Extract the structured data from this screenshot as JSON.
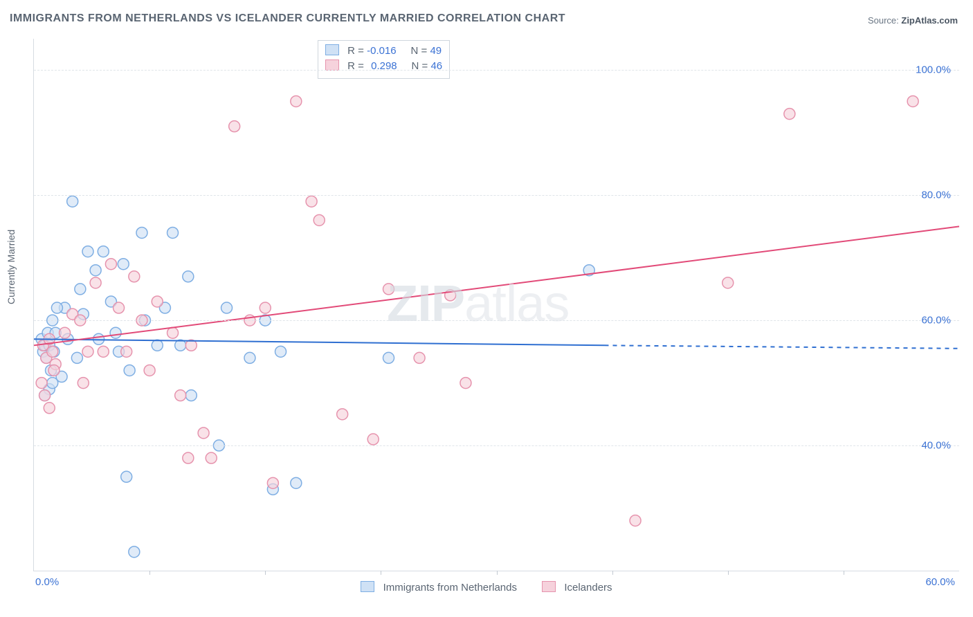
{
  "title": "IMMIGRANTS FROM NETHERLANDS VS ICELANDER CURRENTLY MARRIED CORRELATION CHART",
  "source_label": "Source: ",
  "source_value": "ZipAtlas.com",
  "watermark_left": "ZIP",
  "watermark_right": "atlas",
  "yaxis_title": "Currently Married",
  "chart": {
    "type": "scatter",
    "xlim": [
      0,
      60
    ],
    "ylim": [
      20,
      105
    ],
    "x_ticks": [
      0,
      60
    ],
    "x_tick_labels": [
      "0.0%",
      "60.0%"
    ],
    "x_minor_ticks": [
      7.5,
      15,
      22.5,
      30,
      37.5,
      45,
      52.5
    ],
    "y_gridlines": [
      40,
      60,
      80,
      100
    ],
    "y_tick_labels": [
      "40.0%",
      "60.0%",
      "80.0%",
      "100.0%"
    ],
    "background_color": "#ffffff",
    "grid_color": "#dfe4e9",
    "axis_color": "#d6dce2",
    "marker_radius": 8,
    "marker_stroke_width": 1.5,
    "line_width": 2,
    "series": [
      {
        "name": "Immigrants from Netherlands",
        "fill": "#cfe1f5",
        "stroke": "#7eaee3",
        "fill_opacity": 0.65,
        "r_label": "R = ",
        "r_value": "-0.016",
        "n_label": "N = ",
        "n_value": "49",
        "trend": {
          "x1": 0,
          "y1": 57.0,
          "x2": 37,
          "y2": 56.0,
          "x2_dash": 60,
          "y2_dash": 55.5,
          "color": "#2f6fd1"
        },
        "points": [
          [
            0.5,
            57
          ],
          [
            0.6,
            55
          ],
          [
            0.7,
            56
          ],
          [
            0.8,
            54
          ],
          [
            0.9,
            58
          ],
          [
            1.0,
            56
          ],
          [
            1.1,
            52
          ],
          [
            1.2,
            60
          ],
          [
            1.3,
            55
          ],
          [
            1.4,
            58
          ],
          [
            1.0,
            49
          ],
          [
            1.2,
            50
          ],
          [
            0.7,
            48
          ],
          [
            2.5,
            79
          ],
          [
            3.0,
            65
          ],
          [
            3.2,
            61
          ],
          [
            3.5,
            71
          ],
          [
            4.0,
            68
          ],
          [
            4.2,
            57
          ],
          [
            4.5,
            71
          ],
          [
            5.0,
            63
          ],
          [
            5.3,
            58
          ],
          [
            5.5,
            55
          ],
          [
            5.8,
            69
          ],
          [
            6.0,
            35
          ],
          [
            6.2,
            52
          ],
          [
            6.5,
            23
          ],
          [
            7.0,
            74
          ],
          [
            7.2,
            60
          ],
          [
            9.0,
            74
          ],
          [
            9.5,
            56
          ],
          [
            10.0,
            67
          ],
          [
            10.2,
            48
          ],
          [
            12.0,
            40
          ],
          [
            12.5,
            62
          ],
          [
            14.0,
            54
          ],
          [
            15.0,
            60
          ],
          [
            15.5,
            33
          ],
          [
            16.0,
            55
          ],
          [
            17.0,
            34
          ],
          [
            8.0,
            56
          ],
          [
            8.5,
            62
          ],
          [
            2.0,
            62
          ],
          [
            2.2,
            57
          ],
          [
            2.8,
            54
          ],
          [
            1.8,
            51
          ],
          [
            23.0,
            54
          ],
          [
            36.0,
            68
          ],
          [
            1.5,
            62
          ]
        ]
      },
      {
        "name": "Icelanders",
        "fill": "#f6d2dc",
        "stroke": "#e693ad",
        "fill_opacity": 0.65,
        "r_label": "R = ",
        "r_value": "0.298",
        "n_label": "N = ",
        "n_value": "46",
        "trend": {
          "x1": 0,
          "y1": 56.0,
          "x2": 60,
          "y2": 75.0,
          "x2_dash": 60,
          "y2_dash": 75.0,
          "color": "#e24a78"
        },
        "points": [
          [
            0.6,
            56
          ],
          [
            0.8,
            54
          ],
          [
            1.0,
            57
          ],
          [
            1.2,
            55
          ],
          [
            1.4,
            53
          ],
          [
            0.5,
            50
          ],
          [
            0.7,
            48
          ],
          [
            1.0,
            46
          ],
          [
            1.3,
            52
          ],
          [
            2.0,
            58
          ],
          [
            2.5,
            61
          ],
          [
            3.0,
            60
          ],
          [
            3.2,
            50
          ],
          [
            4.0,
            66
          ],
          [
            5.0,
            69
          ],
          [
            5.5,
            62
          ],
          [
            6.0,
            55
          ],
          [
            6.5,
            67
          ],
          [
            7.0,
            60
          ],
          [
            7.5,
            52
          ],
          [
            8.0,
            63
          ],
          [
            9.0,
            58
          ],
          [
            9.5,
            48
          ],
          [
            10.0,
            38
          ],
          [
            10.2,
            56
          ],
          [
            11.0,
            42
          ],
          [
            11.5,
            38
          ],
          [
            13.0,
            91
          ],
          [
            14.0,
            60
          ],
          [
            15.0,
            62
          ],
          [
            15.5,
            34
          ],
          [
            17.0,
            95
          ],
          [
            18.0,
            79
          ],
          [
            18.5,
            76
          ],
          [
            20.0,
            45
          ],
          [
            22.0,
            41
          ],
          [
            23.0,
            65
          ],
          [
            25.0,
            54
          ],
          [
            27.0,
            64
          ],
          [
            28.0,
            50
          ],
          [
            39.0,
            28
          ],
          [
            45.0,
            66
          ],
          [
            49.0,
            93
          ],
          [
            57.0,
            95
          ],
          [
            3.5,
            55
          ],
          [
            4.5,
            55
          ]
        ]
      }
    ]
  },
  "legend_box": {
    "border_color": "#cfd6dd"
  },
  "bottom_legend": {
    "items": [
      "Immigrants from Netherlands",
      "Icelanders"
    ]
  }
}
